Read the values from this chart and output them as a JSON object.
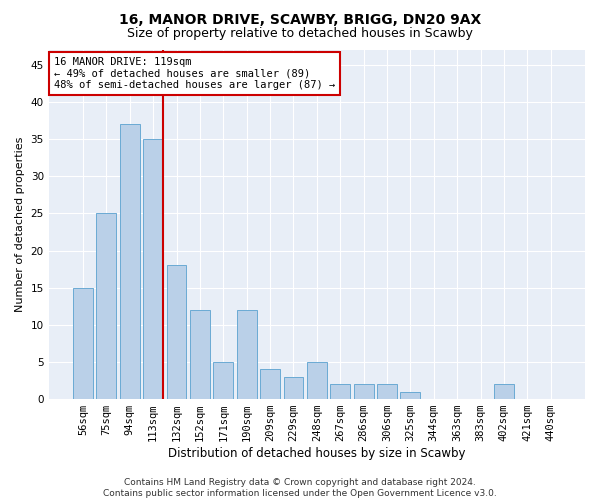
{
  "title1": "16, MANOR DRIVE, SCAWBY, BRIGG, DN20 9AX",
  "title2": "Size of property relative to detached houses in Scawby",
  "xlabel": "Distribution of detached houses by size in Scawby",
  "ylabel": "Number of detached properties",
  "categories": [
    "56sqm",
    "75sqm",
    "94sqm",
    "113sqm",
    "132sqm",
    "152sqm",
    "171sqm",
    "190sqm",
    "209sqm",
    "229sqm",
    "248sqm",
    "267sqm",
    "286sqm",
    "306sqm",
    "325sqm",
    "344sqm",
    "363sqm",
    "383sqm",
    "402sqm",
    "421sqm",
    "440sqm"
  ],
  "values": [
    15,
    25,
    37,
    35,
    18,
    12,
    5,
    12,
    4,
    3,
    5,
    2,
    2,
    2,
    1,
    0,
    0,
    0,
    2,
    0,
    0
  ],
  "bar_color": "#bad0e8",
  "bar_edge_color": "#6aaad4",
  "reference_line_index": 3,
  "reference_line_color": "#cc0000",
  "annotation_text": "16 MANOR DRIVE: 119sqm\n← 49% of detached houses are smaller (89)\n48% of semi-detached houses are larger (87) →",
  "annotation_box_color": "#ffffff",
  "annotation_box_edge": "#cc0000",
  "ylim": [
    0,
    47
  ],
  "yticks": [
    0,
    5,
    10,
    15,
    20,
    25,
    30,
    35,
    40,
    45
  ],
  "bg_color": "#e8eef7",
  "footer": "Contains HM Land Registry data © Crown copyright and database right 2024.\nContains public sector information licensed under the Open Government Licence v3.0.",
  "title1_fontsize": 10,
  "title2_fontsize": 9,
  "xlabel_fontsize": 8.5,
  "ylabel_fontsize": 8,
  "tick_fontsize": 7.5,
  "annotation_fontsize": 7.5,
  "footer_fontsize": 6.5
}
